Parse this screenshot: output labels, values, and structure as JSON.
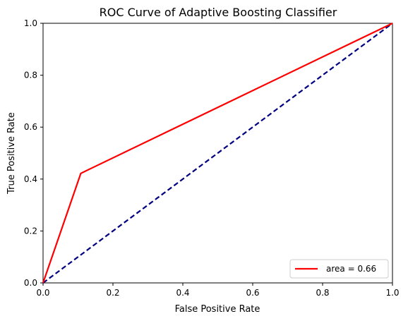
{
  "chart_data": {
    "type": "line",
    "title": "ROC Curve of Adaptive Boosting Classifier",
    "xlabel": "False Positive Rate",
    "ylabel": "True Positive Rate",
    "xlim": [
      0.0,
      1.0
    ],
    "ylim": [
      0.0,
      1.0
    ],
    "xticks": [
      "0.0",
      "0.2",
      "0.4",
      "0.6",
      "0.8",
      "1.0"
    ],
    "yticks": [
      "0.0",
      "0.2",
      "0.4",
      "0.6",
      "0.8",
      "1.0"
    ],
    "grid": false,
    "legend_position": "lower-right",
    "series": [
      {
        "name": "area = 0.66",
        "color": "#ff0000",
        "style": "solid",
        "x": [
          0.0,
          0.108,
          1.0
        ],
        "y": [
          0.0,
          0.422,
          1.0
        ]
      },
      {
        "color": "#000080",
        "style": "dashed",
        "x": [
          0.0,
          1.0
        ],
        "y": [
          0.0,
          1.0
        ]
      }
    ]
  }
}
